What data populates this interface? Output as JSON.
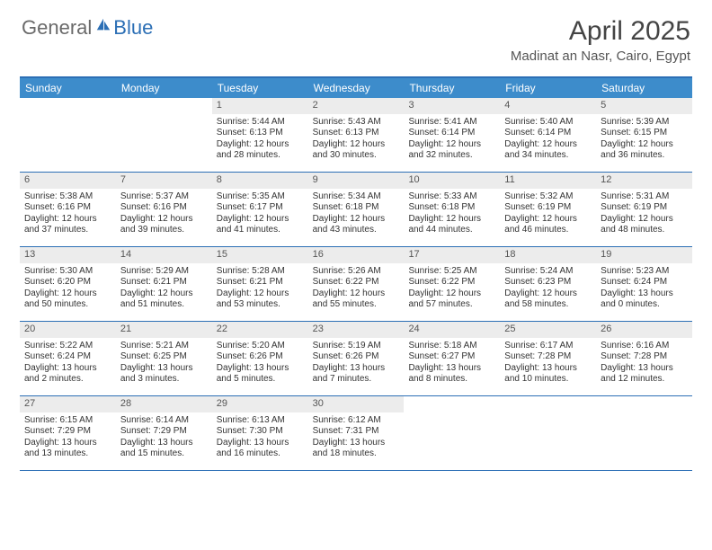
{
  "logo": {
    "part1": "General",
    "part2": "Blue"
  },
  "title": "April 2025",
  "location": "Madinat an Nasr, Cairo, Egypt",
  "colors": {
    "header_bar": "#3d8ccb",
    "border": "#2c6fb5",
    "daynum_bg": "#ececec",
    "logo_gray": "#6a6a6a",
    "logo_blue": "#2c6fb5"
  },
  "days_of_week": [
    "Sunday",
    "Monday",
    "Tuesday",
    "Wednesday",
    "Thursday",
    "Friday",
    "Saturday"
  ],
  "weeks": [
    [
      null,
      null,
      {
        "n": "1",
        "sr": "5:44 AM",
        "ss": "6:13 PM",
        "dl": "12 hours and 28 minutes."
      },
      {
        "n": "2",
        "sr": "5:43 AM",
        "ss": "6:13 PM",
        "dl": "12 hours and 30 minutes."
      },
      {
        "n": "3",
        "sr": "5:41 AM",
        "ss": "6:14 PM",
        "dl": "12 hours and 32 minutes."
      },
      {
        "n": "4",
        "sr": "5:40 AM",
        "ss": "6:14 PM",
        "dl": "12 hours and 34 minutes."
      },
      {
        "n": "5",
        "sr": "5:39 AM",
        "ss": "6:15 PM",
        "dl": "12 hours and 36 minutes."
      }
    ],
    [
      {
        "n": "6",
        "sr": "5:38 AM",
        "ss": "6:16 PM",
        "dl": "12 hours and 37 minutes."
      },
      {
        "n": "7",
        "sr": "5:37 AM",
        "ss": "6:16 PM",
        "dl": "12 hours and 39 minutes."
      },
      {
        "n": "8",
        "sr": "5:35 AM",
        "ss": "6:17 PM",
        "dl": "12 hours and 41 minutes."
      },
      {
        "n": "9",
        "sr": "5:34 AM",
        "ss": "6:18 PM",
        "dl": "12 hours and 43 minutes."
      },
      {
        "n": "10",
        "sr": "5:33 AM",
        "ss": "6:18 PM",
        "dl": "12 hours and 44 minutes."
      },
      {
        "n": "11",
        "sr": "5:32 AM",
        "ss": "6:19 PM",
        "dl": "12 hours and 46 minutes."
      },
      {
        "n": "12",
        "sr": "5:31 AM",
        "ss": "6:19 PM",
        "dl": "12 hours and 48 minutes."
      }
    ],
    [
      {
        "n": "13",
        "sr": "5:30 AM",
        "ss": "6:20 PM",
        "dl": "12 hours and 50 minutes."
      },
      {
        "n": "14",
        "sr": "5:29 AM",
        "ss": "6:21 PM",
        "dl": "12 hours and 51 minutes."
      },
      {
        "n": "15",
        "sr": "5:28 AM",
        "ss": "6:21 PM",
        "dl": "12 hours and 53 minutes."
      },
      {
        "n": "16",
        "sr": "5:26 AM",
        "ss": "6:22 PM",
        "dl": "12 hours and 55 minutes."
      },
      {
        "n": "17",
        "sr": "5:25 AM",
        "ss": "6:22 PM",
        "dl": "12 hours and 57 minutes."
      },
      {
        "n": "18",
        "sr": "5:24 AM",
        "ss": "6:23 PM",
        "dl": "12 hours and 58 minutes."
      },
      {
        "n": "19",
        "sr": "5:23 AM",
        "ss": "6:24 PM",
        "dl": "13 hours and 0 minutes."
      }
    ],
    [
      {
        "n": "20",
        "sr": "5:22 AM",
        "ss": "6:24 PM",
        "dl": "13 hours and 2 minutes."
      },
      {
        "n": "21",
        "sr": "5:21 AM",
        "ss": "6:25 PM",
        "dl": "13 hours and 3 minutes."
      },
      {
        "n": "22",
        "sr": "5:20 AM",
        "ss": "6:26 PM",
        "dl": "13 hours and 5 minutes."
      },
      {
        "n": "23",
        "sr": "5:19 AM",
        "ss": "6:26 PM",
        "dl": "13 hours and 7 minutes."
      },
      {
        "n": "24",
        "sr": "5:18 AM",
        "ss": "6:27 PM",
        "dl": "13 hours and 8 minutes."
      },
      {
        "n": "25",
        "sr": "6:17 AM",
        "ss": "7:28 PM",
        "dl": "13 hours and 10 minutes."
      },
      {
        "n": "26",
        "sr": "6:16 AM",
        "ss": "7:28 PM",
        "dl": "13 hours and 12 minutes."
      }
    ],
    [
      {
        "n": "27",
        "sr": "6:15 AM",
        "ss": "7:29 PM",
        "dl": "13 hours and 13 minutes."
      },
      {
        "n": "28",
        "sr": "6:14 AM",
        "ss": "7:29 PM",
        "dl": "13 hours and 15 minutes."
      },
      {
        "n": "29",
        "sr": "6:13 AM",
        "ss": "7:30 PM",
        "dl": "13 hours and 16 minutes."
      },
      {
        "n": "30",
        "sr": "6:12 AM",
        "ss": "7:31 PM",
        "dl": "13 hours and 18 minutes."
      },
      null,
      null,
      null
    ]
  ],
  "labels": {
    "sunrise": "Sunrise:",
    "sunset": "Sunset:",
    "daylight": "Daylight:"
  }
}
